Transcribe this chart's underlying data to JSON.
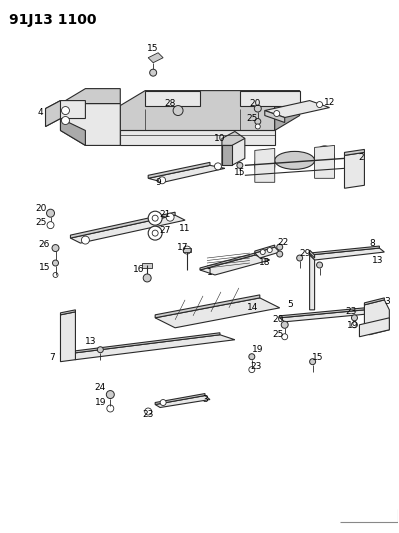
{
  "title": "91J13 1100",
  "bg_color": "#ffffff",
  "title_fontsize": 10,
  "title_fontweight": "bold",
  "fig_width": 3.99,
  "fig_height": 5.33,
  "dpi": 100,
  "line_color": "#2a2a2a",
  "label_color": "#000000",
  "label_fontsize": 6.5,
  "fill_light": "#e8e8e8",
  "fill_mid": "#cccccc",
  "fill_dark": "#aaaaaa"
}
